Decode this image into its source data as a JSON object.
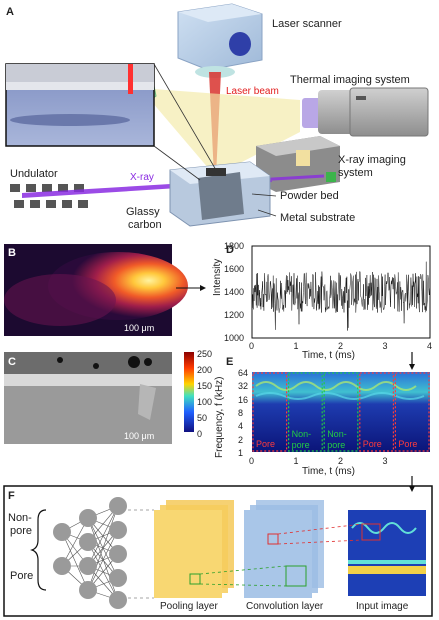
{
  "panel_a": {
    "letter": "A",
    "labels": {
      "laser_scanner": "Laser scanner",
      "laser_beam": "Laser beam",
      "thermal": "Thermal imaging system",
      "xray_imaging_1": "X-ray imaging",
      "xray_imaging_2": "system",
      "undulator": "Undulator",
      "xray": "X-ray",
      "glassy_1": "Glassy",
      "glassy_2": "carbon",
      "powder_bed": "Powder bed",
      "metal_substrate": "Metal substrate"
    }
  },
  "panel_b": {
    "letter": "B",
    "scale": "100 μm"
  },
  "panel_c": {
    "letter": "C",
    "scale": "100 μm",
    "colorbar_ticks": [
      "250",
      "200",
      "150",
      "100",
      "50",
      "0"
    ]
  },
  "panel_d": {
    "letter": "D",
    "ylabel": "Intensity",
    "xlabel": "Time, t (ms)",
    "yticks": [
      "1800",
      "1600",
      "1400",
      "1200",
      "1000"
    ],
    "xticks": [
      "0",
      "1",
      "2",
      "3",
      "4"
    ]
  },
  "panel_e": {
    "letter": "E",
    "ylabel": "Frequency, f (kHz)",
    "xlabel": "Time, t (ms)",
    "yticks": [
      "64",
      "32",
      "16",
      "8",
      "4",
      "2",
      "1"
    ],
    "xticks": [
      "0",
      "1",
      "2",
      "3"
    ],
    "segments": [
      {
        "label1": "Pore",
        "label2": "",
        "color": "#ff3b3b"
      },
      {
        "label1": "Non-",
        "label2": "pore",
        "color": "#22cc44"
      },
      {
        "label1": "Non-",
        "label2": "pore",
        "color": "#22cc44"
      },
      {
        "label1": "Pore",
        "label2": "",
        "color": "#ff3b3b"
      },
      {
        "label1": "Pore",
        "label2": "",
        "color": "#ff3b3b"
      }
    ]
  },
  "panel_f": {
    "letter": "F",
    "nonpore_1": "Non-",
    "nonpore_2": "pore",
    "pore": "Pore",
    "pooling": "Pooling layer",
    "convolution": "Convolution layer",
    "input": "Input image"
  },
  "chart_data": {
    "type": "line",
    "title": "",
    "xlabel": "Time, t (ms)",
    "ylabel": "Intensity",
    "xlim": [
      0,
      4
    ],
    "ylim": [
      1000,
      1800
    ],
    "series": [
      {
        "values_summary": "noisy signal fluctuating mostly between 1200 and 1600, mean about 1400"
      }
    ]
  },
  "colors": {
    "laser": "#d8332e",
    "xray": "#8a2be2",
    "pooling": "#f6c64a",
    "convolution": "#7fa6d6",
    "node": "#9a9a9a"
  }
}
